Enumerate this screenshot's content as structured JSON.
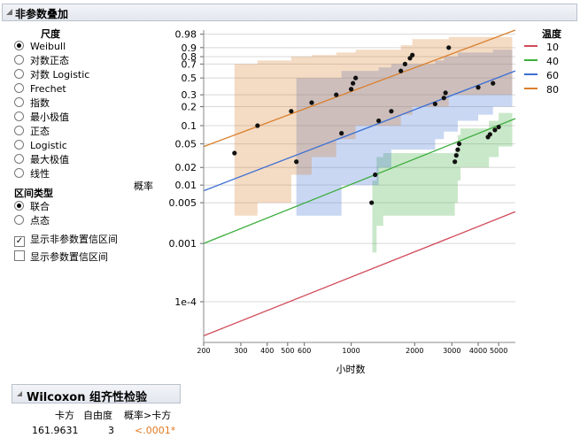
{
  "header": {
    "title": "非参数叠加"
  },
  "scale": {
    "title": "尺度",
    "options": [
      "Weibull",
      "对数正态",
      "对数 Logistic",
      "Frechet",
      "指数",
      "最小极值",
      "正态",
      "Logistic",
      "最大极值",
      "线性"
    ],
    "selected": "Weibull"
  },
  "interval": {
    "title": "区间类型",
    "options": [
      "联合",
      "点态"
    ],
    "selected": "联合"
  },
  "checkboxes": {
    "show_nonparam": {
      "label": "显示非参数置信区间",
      "checked": true
    },
    "show_param": {
      "label": "显示参数置信区间",
      "checked": false
    }
  },
  "legend": {
    "title": "温度",
    "items": [
      {
        "label": "10",
        "color": "#d14b5a"
      },
      {
        "label": "40",
        "color": "#3cae3c"
      },
      {
        "label": "60",
        "color": "#3c6fd4"
      },
      {
        "label": "80",
        "color": "#d97f2a"
      }
    ]
  },
  "wilcoxon": {
    "title": "Wilcoxon 组齐性检验",
    "headers": [
      "卡方",
      "自由度",
      "概率>卡方"
    ],
    "values": [
      "161.9631",
      "3",
      "<.0001*"
    ],
    "p_color": "#e07b22"
  },
  "chart_data": {
    "type": "scatter",
    "xlabel": "小时数",
    "ylabel": "概率",
    "x_scale": "log",
    "y_scale": "weibull",
    "xlim": [
      200,
      6000
    ],
    "ylim": [
      2e-05,
      0.99
    ],
    "x_ticks": [
      "200",
      "300",
      "400",
      "500",
      "600",
      "1000",
      "2000",
      "3000",
      "4000",
      "5000"
    ],
    "x_tick_values": [
      200,
      300,
      400,
      500,
      600,
      1000,
      2000,
      3000,
      4000,
      5000
    ],
    "y_ticks": [
      "0.98",
      "0.9",
      "0.8",
      "0.7",
      "0.5",
      "0.3",
      "0.2",
      "0.1",
      "0.05",
      "0.02",
      "0.01",
      "0.005",
      "0.001",
      "1e-4"
    ],
    "y_tick_values": [
      0.98,
      0.9,
      0.8,
      0.7,
      0.5,
      0.3,
      0.2,
      0.1,
      0.05,
      0.02,
      0.01,
      0.005,
      0.001,
      0.0001
    ],
    "grid": true,
    "series": [
      {
        "name": "10",
        "color": "#d14b5a",
        "points": [],
        "fit": [
          [
            200,
            2.6e-05
          ],
          [
            6000,
            0.0035
          ]
        ],
        "band": []
      },
      {
        "name": "40",
        "color": "#3cae3c",
        "points": [
          [
            1250,
            0.005
          ],
          [
            1300,
            0.015
          ],
          [
            3100,
            0.025
          ],
          [
            3150,
            0.032
          ],
          [
            3200,
            0.04
          ],
          [
            3250,
            0.05
          ],
          [
            4450,
            0.065
          ],
          [
            4550,
            0.072
          ],
          [
            4800,
            0.085
          ],
          [
            5000,
            0.095
          ]
        ],
        "fit": [
          [
            200,
            0.001
          ],
          [
            6000,
            0.13
          ]
        ],
        "band": [
          [
            1260,
            0.0007,
            0.012
          ],
          [
            1320,
            0.002,
            0.03
          ],
          [
            1420,
            0.003,
            0.035
          ],
          [
            3100,
            0.005,
            0.04
          ],
          [
            3200,
            0.012,
            0.07
          ],
          [
            3300,
            0.02,
            0.09
          ],
          [
            4500,
            0.03,
            0.12
          ],
          [
            5000,
            0.045,
            0.16
          ],
          [
            5800,
            0.045,
            0.16
          ]
        ]
      },
      {
        "name": "60",
        "color": "#3c6fd4",
        "points": [
          [
            550,
            0.025
          ],
          [
            900,
            0.075
          ],
          [
            1350,
            0.12
          ],
          [
            1550,
            0.17
          ],
          [
            2500,
            0.22
          ],
          [
            2750,
            0.27
          ],
          [
            2800,
            0.32
          ],
          [
            4000,
            0.38
          ],
          [
            4700,
            0.43
          ]
        ],
        "fit": [
          [
            200,
            0.008
          ],
          [
            6000,
            0.6
          ]
        ],
        "band": [
          [
            550,
            0.003,
            0.5
          ],
          [
            900,
            0.01,
            0.6
          ],
          [
            1350,
            0.02,
            0.65
          ],
          [
            1550,
            0.04,
            0.7
          ],
          [
            2500,
            0.06,
            0.75
          ],
          [
            2750,
            0.08,
            0.8
          ],
          [
            3200,
            0.12,
            0.85
          ],
          [
            4000,
            0.15,
            0.85
          ],
          [
            4700,
            0.2,
            0.88
          ],
          [
            5800,
            0.2,
            0.88
          ]
        ]
      },
      {
        "name": "80",
        "color": "#d97f2a",
        "points": [
          [
            280,
            0.035
          ],
          [
            360,
            0.1
          ],
          [
            520,
            0.17
          ],
          [
            650,
            0.23
          ],
          [
            850,
            0.3
          ],
          [
            1000,
            0.36
          ],
          [
            1020,
            0.43
          ],
          [
            1050,
            0.5
          ],
          [
            1720,
            0.6
          ],
          [
            1800,
            0.7
          ],
          [
            1900,
            0.78
          ],
          [
            1950,
            0.82
          ],
          [
            2900,
            0.9
          ]
        ],
        "fit": [
          [
            200,
            0.045
          ],
          [
            6000,
            0.99
          ]
        ],
        "band": [
          [
            280,
            0.003,
            0.7
          ],
          [
            360,
            0.005,
            0.75
          ],
          [
            520,
            0.015,
            0.8
          ],
          [
            650,
            0.03,
            0.82
          ],
          [
            850,
            0.06,
            0.85
          ],
          [
            1050,
            0.1,
            0.88
          ],
          [
            1720,
            0.15,
            0.92
          ],
          [
            1950,
            0.2,
            0.96
          ],
          [
            2900,
            0.3,
            0.97
          ],
          [
            5800,
            0.3,
            0.97
          ]
        ]
      }
    ]
  }
}
